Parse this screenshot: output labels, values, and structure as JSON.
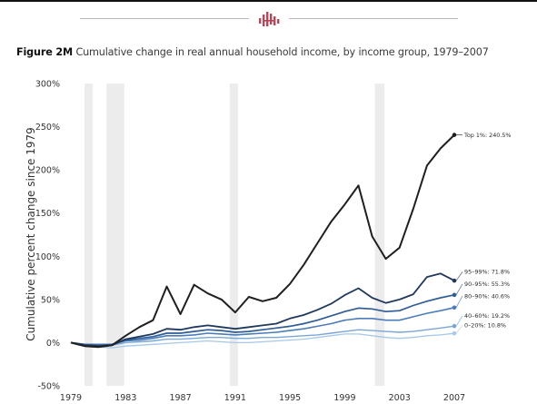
{
  "figure_title": {
    "prefix": "Figure 2M",
    "text": "Cumulative change in real annual household income, by income group, 1979–2007"
  },
  "colors": {
    "recession_band": "#ececec",
    "divider": "#b9b9b9",
    "logo": "#b5485a"
  },
  "chart_data": {
    "type": "line",
    "title": "Figure 2M Cumulative change in real annual household income, by income group, 1979–2007",
    "ylabel": "Cumulative percent change since 1979",
    "xlabel": "",
    "ylim": [
      -50,
      300
    ],
    "xlim": [
      1979,
      2007
    ],
    "y_ticks": [
      "300%",
      "250%",
      "200%",
      "150%",
      "100%",
      "50%",
      "0%",
      "-50%"
    ],
    "x_ticks": [
      "1979",
      "1983",
      "1987",
      "1991",
      "1995",
      "1999",
      "2003",
      "2007"
    ],
    "grid": false,
    "recession_shading": [
      [
        1980,
        1980.6
      ],
      [
        1981.6,
        1982.9
      ],
      [
        1990.6,
        1991.2
      ],
      [
        2001.2,
        2001.9
      ]
    ],
    "x": [
      1979,
      1980,
      1981,
      1982,
      1983,
      1984,
      1985,
      1986,
      1987,
      1988,
      1989,
      1990,
      1991,
      1992,
      1993,
      1994,
      1995,
      1996,
      1997,
      1998,
      1999,
      2000,
      2001,
      2002,
      2003,
      2004,
      2005,
      2006,
      2007
    ],
    "series": [
      {
        "name": "Top 1%",
        "end_label": "Top 1%: 240.5%",
        "color": "#1f1f1f",
        "width": 2.0,
        "values": [
          0,
          -4,
          -5,
          -3,
          8,
          18,
          26,
          65,
          33,
          67,
          57,
          50,
          35,
          53,
          48,
          52,
          68,
          90,
          115,
          140,
          160,
          182,
          123,
          97,
          110,
          155,
          205,
          225,
          240.5
        ]
      },
      {
        "name": "95–99%",
        "end_label": "95–99%: 71.8%",
        "color": "#20385e",
        "width": 1.8,
        "values": [
          0,
          -3,
          -4,
          -3,
          4,
          7,
          10,
          16,
          15,
          18,
          20,
          18,
          16,
          18,
          20,
          22,
          28,
          32,
          38,
          45,
          55,
          63,
          52,
          46,
          50,
          56,
          76,
          80,
          71.8
        ]
      },
      {
        "name": "90–95%",
        "end_label": "90–95%: 55.3%",
        "color": "#2f5d95",
        "width": 1.7,
        "values": [
          0,
          -2,
          -3,
          -2,
          3,
          5,
          7,
          11,
          11,
          13,
          15,
          14,
          12,
          13,
          15,
          17,
          19,
          22,
          26,
          31,
          36,
          40,
          39,
          36,
          37,
          43,
          48,
          52,
          55.3
        ]
      },
      {
        "name": "80–90%",
        "end_label": "80–90%: 40.6%",
        "color": "#4a7cb8",
        "width": 1.6,
        "values": [
          0,
          -2,
          -2,
          -2,
          2,
          3,
          5,
          8,
          8,
          9,
          11,
          10,
          9,
          10,
          11,
          12,
          14,
          16,
          19,
          22,
          26,
          28,
          28,
          26,
          26,
          30,
          34,
          37,
          40.6
        ]
      },
      {
        "name": "40–60%",
        "end_label": "40–60%: 19.2%",
        "color": "#7aa6d6",
        "width": 1.4,
        "values": [
          0,
          -2,
          -3,
          -3,
          0,
          1,
          2,
          4,
          4,
          5,
          6,
          6,
          5,
          5,
          6,
          6,
          7,
          8,
          9,
          11,
          13,
          15,
          14,
          13,
          12,
          13,
          15,
          17,
          19.2
        ]
      },
      {
        "name": "0–20%",
        "end_label": "0–20%: 10.8%",
        "color": "#a7c8ea",
        "width": 1.3,
        "values": [
          0,
          -3,
          -5,
          -6,
          -4,
          -3,
          -2,
          -1,
          0,
          1,
          2,
          1,
          0,
          0,
          1,
          2,
          3,
          4,
          6,
          8,
          10,
          10,
          8,
          6,
          5,
          6,
          8,
          9,
          10.8
        ]
      }
    ]
  }
}
